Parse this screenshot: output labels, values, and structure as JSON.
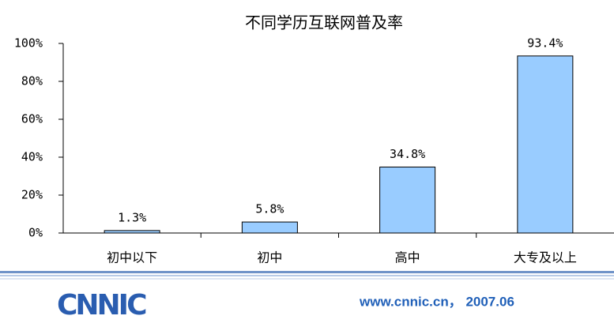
{
  "chart_data": {
    "type": "bar",
    "title": "不同学历互联网普及率",
    "categories": [
      "初中以下",
      "初中",
      "高中",
      "大专及以上"
    ],
    "values": [
      1.3,
      5.8,
      34.8,
      93.4
    ],
    "value_labels": [
      "1.3%",
      "5.8%",
      "34.8%",
      "93.4%"
    ],
    "color": "#99ccff",
    "ylim": [
      0,
      100
    ],
    "yticks": [
      {
        "value": 0,
        "label": "0%"
      },
      {
        "value": 20,
        "label": "20%"
      },
      {
        "value": 40,
        "label": "40%"
      },
      {
        "value": 60,
        "label": "60%"
      },
      {
        "value": 80,
        "label": "80%"
      },
      {
        "value": 100,
        "label": "100%"
      }
    ],
    "grid": false
  },
  "footer": {
    "logo": "CNNIC",
    "text": "www.cnnic.cn， 2007.06"
  }
}
